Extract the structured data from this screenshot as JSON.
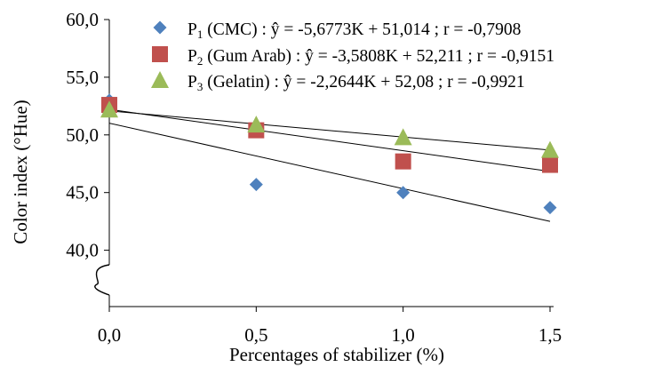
{
  "chart_data": {
    "type": "scatter",
    "xlabel": "Percentages of stabilizer (%)",
    "ylabel": "Color index (°Hue)",
    "x": [
      0.0,
      0.5,
      1.0,
      1.5
    ],
    "x_tick_labels": [
      "0,0",
      "0,5",
      "1,0",
      "1,5"
    ],
    "y_tick_labels": [
      "40,0",
      "45,0",
      "50,0",
      "55,0",
      "60,0"
    ],
    "y_ticks": [
      40,
      45,
      50,
      55,
      60
    ],
    "xlim": [
      0,
      1.5
    ],
    "ylim": [
      35,
      60
    ],
    "y_axis_break": true,
    "grid": false,
    "legend_position": "top",
    "series": [
      {
        "name": "P1 (CMC)",
        "legend_prefix": "P",
        "legend_sub": "1",
        "legend_rest": " (CMC) : ŷ = -5,6773K + 51,014 ; r = -0,7908",
        "marker": "diamond",
        "color": "#4F81BD",
        "values": [
          53.0,
          45.7,
          45.0,
          43.7
        ],
        "trend": {
          "slope": -5.6773,
          "intercept": 51.014
        }
      },
      {
        "name": "P2 (Gum Arab)",
        "legend_prefix": "P",
        "legend_sub": "2",
        "legend_rest": " (Gum Arab) : ŷ = -3,5808K + 52,211 ; r = -0,9151",
        "marker": "square",
        "color": "#C0504D",
        "values": [
          52.6,
          50.4,
          47.7,
          47.4
        ],
        "trend": {
          "slope": -3.5808,
          "intercept": 52.211
        }
      },
      {
        "name": "P3 (Gelatin)",
        "legend_prefix": "P",
        "legend_sub": "3",
        "legend_rest": " (Gelatin) : ŷ = -2,2644K + 52,08 ; r = -0,9921",
        "marker": "triangle",
        "color": "#9BBB59",
        "values": [
          52.2,
          50.9,
          49.8,
          48.7
        ],
        "trend": {
          "slope": -2.2644,
          "intercept": 52.08
        }
      }
    ]
  }
}
